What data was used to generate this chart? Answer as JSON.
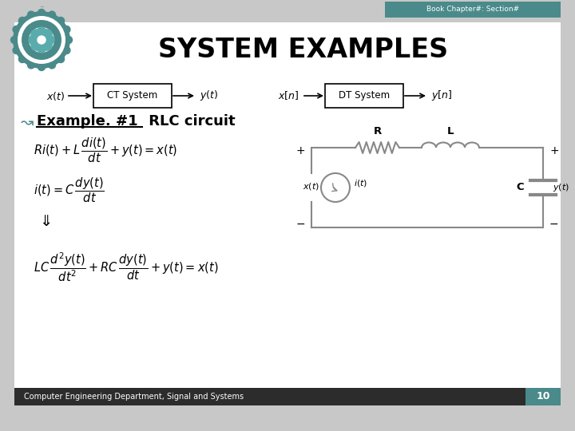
{
  "title": "SYSTEM EXAMPLES",
  "header_text": "Book Chapter#: Section#",
  "header_bg": "#4a8a8a",
  "slide_bg": "#c8c8c8",
  "content_bg": "#ffffff",
  "footer_text": "Computer Engineering Department, Signal and Systems",
  "footer_page": "10",
  "footer_bg": "#2c2c2c",
  "footer_fg": "#ffffff",
  "example_label": "Example. #1",
  "example_rest": " RLC circuit",
  "ct_label": "CT System",
  "dt_label": "DT System"
}
